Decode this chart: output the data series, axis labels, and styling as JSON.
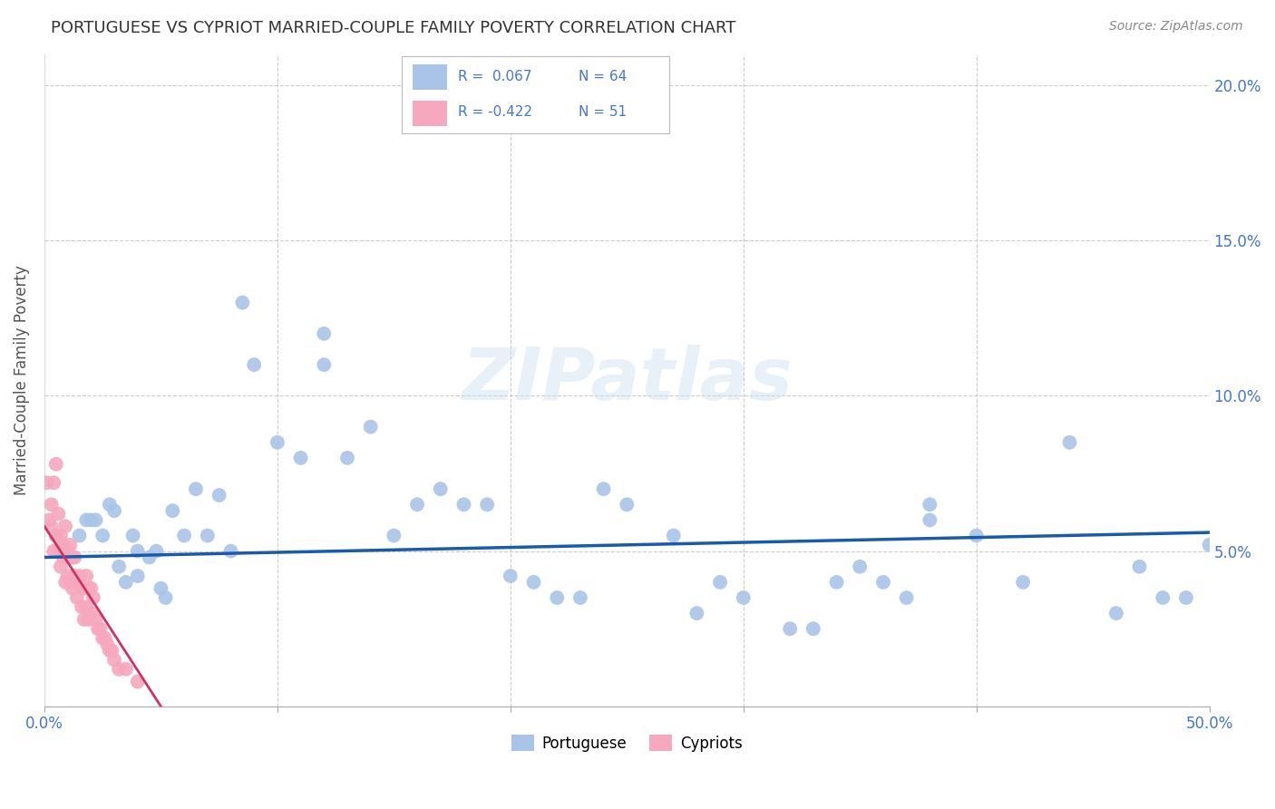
{
  "title": "PORTUGUESE VS CYPRIOT MARRIED-COUPLE FAMILY POVERTY CORRELATION CHART",
  "source": "Source: ZipAtlas.com",
  "ylabel": "Married-Couple Family Poverty",
  "xlim": [
    0,
    0.5
  ],
  "ylim": [
    0,
    0.21
  ],
  "xticks": [
    0.0,
    0.1,
    0.2,
    0.3,
    0.4,
    0.5
  ],
  "xticklabels": [
    "0.0%",
    "",
    "",
    "",
    "",
    "50.0%"
  ],
  "yticks": [
    0.0,
    0.05,
    0.1,
    0.15,
    0.2
  ],
  "yticklabels_right": [
    "",
    "5.0%",
    "10.0%",
    "15.0%",
    "20.0%"
  ],
  "watermark": "ZIPatlas",
  "blue_color": "#aac4e8",
  "pink_color": "#f5a8be",
  "blue_line_color": "#1a5aaa",
  "pink_line_color": "#cc3366",
  "axis_color": "#4477cc",
  "grid_color": "#cccccc",
  "title_color": "#333333",
  "portuguese_x": [
    0.005,
    0.008,
    0.01,
    0.015,
    0.018,
    0.02,
    0.022,
    0.025,
    0.028,
    0.03,
    0.032,
    0.035,
    0.038,
    0.04,
    0.04,
    0.045,
    0.048,
    0.05,
    0.052,
    0.055,
    0.06,
    0.065,
    0.07,
    0.075,
    0.08,
    0.085,
    0.09,
    0.1,
    0.11,
    0.12,
    0.13,
    0.14,
    0.15,
    0.16,
    0.17,
    0.18,
    0.19,
    0.2,
    0.21,
    0.22,
    0.23,
    0.24,
    0.25,
    0.27,
    0.28,
    0.29,
    0.3,
    0.32,
    0.33,
    0.34,
    0.35,
    0.36,
    0.37,
    0.38,
    0.4,
    0.42,
    0.44,
    0.46,
    0.47,
    0.48,
    0.49,
    0.5,
    0.12,
    0.38
  ],
  "portuguese_y": [
    0.055,
    0.052,
    0.048,
    0.055,
    0.06,
    0.06,
    0.06,
    0.055,
    0.065,
    0.063,
    0.045,
    0.04,
    0.055,
    0.05,
    0.042,
    0.048,
    0.05,
    0.038,
    0.035,
    0.063,
    0.055,
    0.07,
    0.055,
    0.068,
    0.05,
    0.13,
    0.11,
    0.085,
    0.08,
    0.12,
    0.08,
    0.09,
    0.055,
    0.065,
    0.07,
    0.065,
    0.065,
    0.042,
    0.04,
    0.035,
    0.035,
    0.07,
    0.065,
    0.055,
    0.03,
    0.04,
    0.035,
    0.025,
    0.025,
    0.04,
    0.045,
    0.04,
    0.035,
    0.06,
    0.055,
    0.04,
    0.085,
    0.03,
    0.045,
    0.035,
    0.035,
    0.052,
    0.11,
    0.065
  ],
  "cypriot_x": [
    0.001,
    0.002,
    0.003,
    0.003,
    0.004,
    0.004,
    0.005,
    0.005,
    0.006,
    0.006,
    0.007,
    0.007,
    0.008,
    0.008,
    0.009,
    0.009,
    0.01,
    0.01,
    0.011,
    0.011,
    0.012,
    0.012,
    0.013,
    0.013,
    0.014,
    0.014,
    0.015,
    0.015,
    0.016,
    0.016,
    0.017,
    0.017,
    0.018,
    0.018,
    0.019,
    0.019,
    0.02,
    0.02,
    0.021,
    0.022,
    0.023,
    0.024,
    0.025,
    0.026,
    0.027,
    0.028,
    0.029,
    0.03,
    0.032,
    0.035,
    0.04
  ],
  "cypriot_y": [
    0.072,
    0.06,
    0.058,
    0.065,
    0.072,
    0.05,
    0.078,
    0.055,
    0.062,
    0.05,
    0.055,
    0.045,
    0.052,
    0.048,
    0.058,
    0.04,
    0.05,
    0.042,
    0.04,
    0.052,
    0.048,
    0.038,
    0.042,
    0.048,
    0.04,
    0.035,
    0.04,
    0.042,
    0.038,
    0.032,
    0.038,
    0.028,
    0.032,
    0.042,
    0.038,
    0.028,
    0.038,
    0.03,
    0.035,
    0.028,
    0.025,
    0.025,
    0.022,
    0.022,
    0.02,
    0.018,
    0.018,
    0.015,
    0.012,
    0.012,
    0.008
  ],
  "blue_line_x": [
    0.0,
    0.5
  ],
  "blue_line_y": [
    0.048,
    0.056
  ],
  "pink_line_x": [
    0.0,
    0.05
  ],
  "pink_line_y": [
    0.058,
    0.0
  ]
}
